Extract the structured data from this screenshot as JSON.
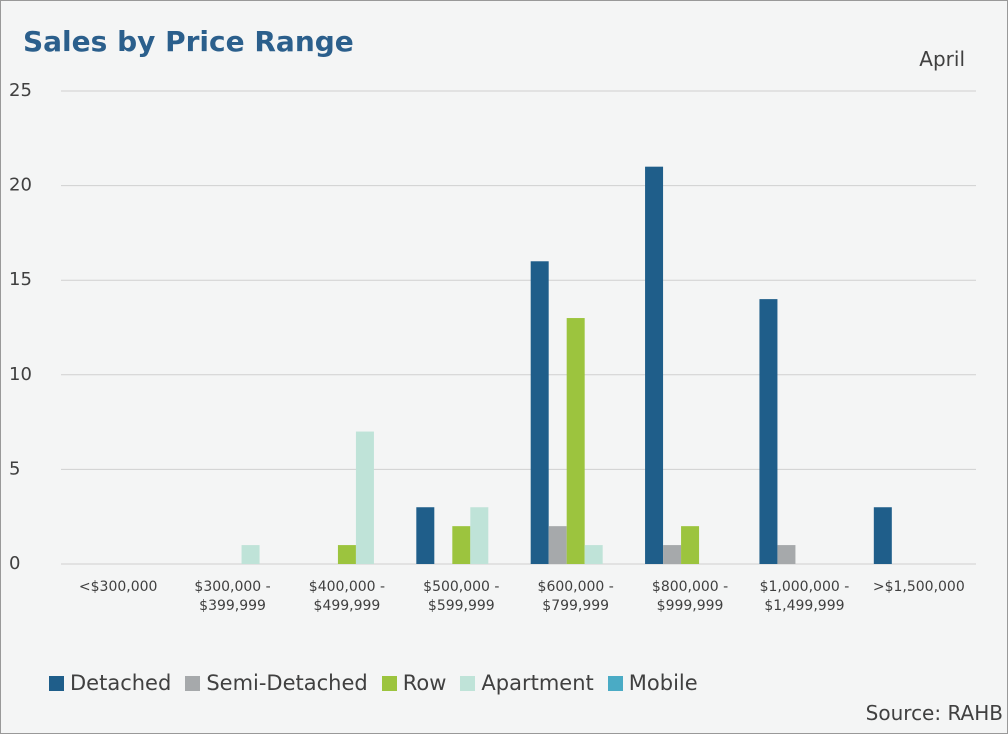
{
  "chart_data": {
    "type": "bar",
    "title": "Sales by Price Range",
    "subtitle": "April",
    "source": "Source: RAHB",
    "categories": [
      "<$300,000",
      "$300,000 - $399,999",
      "$400,000 - $499,999",
      "$500,000 - $599,999",
      "$600,000 - $799,999",
      "$800,000 - $999,999",
      "$1,000,000 - $1,499,999",
      ">$1,500,000"
    ],
    "series": [
      {
        "name": "Detached",
        "color": "#1f5e8a",
        "values": [
          0,
          0,
          0,
          3,
          16,
          21,
          14,
          3
        ]
      },
      {
        "name": "Semi-Detached",
        "color": "#a6a9ab",
        "values": [
          0,
          0,
          0,
          0,
          2,
          1,
          1,
          0
        ]
      },
      {
        "name": "Row",
        "color": "#9cc43e",
        "values": [
          0,
          0,
          1,
          2,
          13,
          2,
          0,
          0
        ]
      },
      {
        "name": "Apartment",
        "color": "#bfe3d8",
        "values": [
          0,
          1,
          7,
          3,
          1,
          0,
          0,
          0
        ]
      },
      {
        "name": "Mobile",
        "color": "#4aabc5",
        "values": [
          0,
          0,
          0,
          0,
          0,
          0,
          0,
          0
        ]
      }
    ],
    "ylim": [
      0,
      25
    ],
    "yticks": [
      0,
      5,
      10,
      15,
      20,
      25
    ],
    "grid": true,
    "legend": "bottom"
  }
}
